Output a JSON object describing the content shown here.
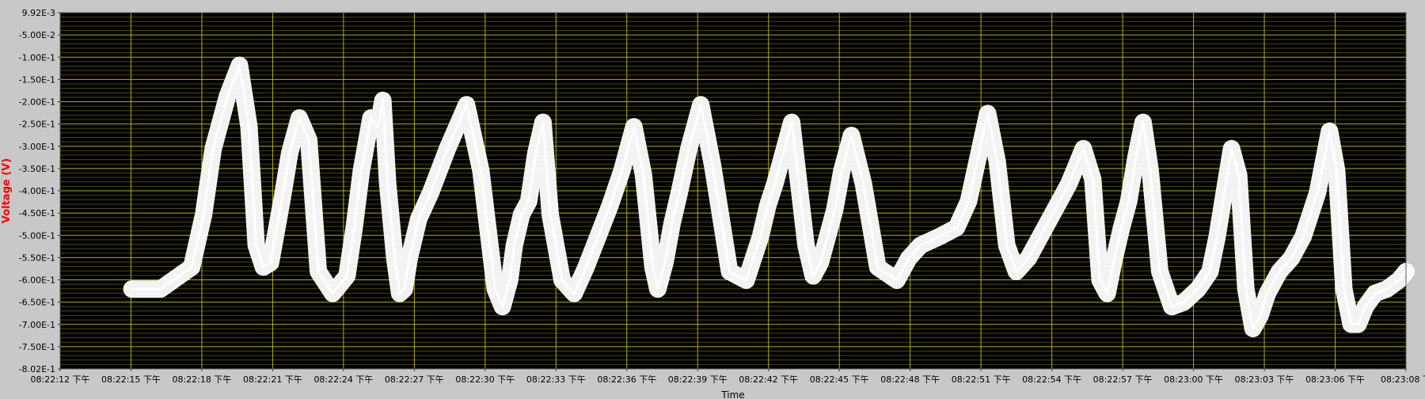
{
  "chart_data": {
    "type": "line",
    "title": "",
    "xlabel": "Time",
    "ylabel": "Voltage (V)",
    "x_tick_labels": [
      "08:22:12 下午",
      "08:22:15 下午",
      "08:22:18 下午",
      "08:22:21 下午",
      "08:22:24 下午",
      "08:22:27 下午",
      "08:22:30 下午",
      "08:22:33 下午",
      "08:22:36 下午",
      "08:22:39 下午",
      "08:22:42 下午",
      "08:22:45 下午",
      "08:22:48 下午",
      "08:22:51 下午",
      "08:22:54 下午",
      "08:22:57 下午",
      "08:23:00 下午",
      "08:23:03 下午",
      "08:23:06 下午",
      "08:23:08 下"
    ],
    "y_tick_labels": [
      "9.92E-3",
      "-5.00E-2",
      "-1.00E-1",
      "-1.50E-1",
      "-2.00E-1",
      "-2.50E-1",
      "-3.00E-1",
      "-3.50E-1",
      "-4.00E-1",
      "-4.50E-1",
      "-5.00E-1",
      "-5.50E-1",
      "-6.00E-1",
      "-6.50E-1",
      "-7.00E-1",
      "-7.50E-1",
      "-8.02E-1"
    ],
    "ylim": [
      -0.802,
      0.00992
    ],
    "xlim_seconds": [
      0,
      56.3
    ],
    "grid": true,
    "colors": {
      "plot_background": "#000000",
      "major_grid": "#b5b000",
      "minor_grid": "#4a4a00",
      "trace": "#ffffff",
      "ylabel": "#ff0000"
    },
    "series": [
      {
        "name": "",
        "x": [
          3.0,
          4.2,
          5.5,
          6.0,
          6.4,
          7.0,
          7.5,
          7.9,
          8.2,
          8.5,
          8.8,
          9.0,
          9.3,
          9.6,
          10.0,
          10.4,
          10.8,
          11.4,
          12.0,
          12.3,
          12.6,
          13.0,
          13.3,
          13.5,
          13.7,
          14.0,
          14.2,
          14.4,
          14.6,
          15.0,
          15.5,
          16.2,
          17.0,
          17.6,
          18.2,
          18.5,
          18.8,
          19.0,
          19.3,
          19.6,
          19.9,
          20.2,
          20.5,
          21.0,
          21.5,
          22.0,
          22.5,
          23.0,
          23.5,
          24.0,
          24.4,
          24.8,
          25.0,
          25.3,
          25.6,
          25.9,
          26.3,
          26.8,
          27.3,
          28.0,
          28.7,
          29.3,
          29.6,
          29.9,
          30.2,
          30.6,
          30.9,
          31.2,
          31.5,
          31.8,
          32.1,
          32.4,
          32.7,
          33.1,
          33.6,
          34.2,
          35.0,
          35.5,
          36.0,
          36.8,
          37.5,
          38.0,
          38.4,
          38.8,
          39.2,
          39.6,
          40.0,
          40.5,
          41.0,
          41.6,
          42.2,
          42.8,
          43.2,
          43.5,
          43.8,
          44.1,
          44.4,
          44.7,
          45.0,
          45.3,
          45.6,
          46.0,
          46.5,
          47.0,
          47.6,
          48.1,
          48.4,
          48.7,
          49.0,
          49.3,
          49.6,
          49.9,
          50.2,
          50.5,
          51.0,
          51.5,
          52.0,
          52.6,
          53.1,
          53.4,
          53.7,
          54.0,
          54.3,
          54.6,
          55.0,
          55.5,
          56.0,
          56.3
        ],
        "y": [
          -0.62,
          -0.62,
          -0.57,
          -0.45,
          -0.3,
          -0.18,
          -0.11,
          -0.25,
          -0.52,
          -0.57,
          -0.56,
          -0.5,
          -0.41,
          -0.31,
          -0.23,
          -0.28,
          -0.58,
          -0.63,
          -0.59,
          -0.48,
          -0.35,
          -0.23,
          -0.25,
          -0.19,
          -0.38,
          -0.55,
          -0.63,
          -0.62,
          -0.55,
          -0.46,
          -0.4,
          -0.3,
          -0.2,
          -0.35,
          -0.62,
          -0.66,
          -0.6,
          -0.52,
          -0.45,
          -0.42,
          -0.31,
          -0.24,
          -0.45,
          -0.6,
          -0.63,
          -0.57,
          -0.5,
          -0.43,
          -0.35,
          -0.25,
          -0.36,
          -0.57,
          -0.62,
          -0.56,
          -0.47,
          -0.4,
          -0.3,
          -0.2,
          -0.34,
          -0.58,
          -0.6,
          -0.5,
          -0.43,
          -0.38,
          -0.32,
          -0.24,
          -0.38,
          -0.52,
          -0.59,
          -0.56,
          -0.5,
          -0.44,
          -0.35,
          -0.27,
          -0.38,
          -0.57,
          -0.6,
          -0.55,
          -0.52,
          -0.5,
          -0.48,
          -0.42,
          -0.32,
          -0.22,
          -0.33,
          -0.52,
          -0.58,
          -0.55,
          -0.5,
          -0.44,
          -0.38,
          -0.3,
          -0.37,
          -0.6,
          -0.63,
          -0.55,
          -0.48,
          -0.42,
          -0.32,
          -0.24,
          -0.35,
          -0.58,
          -0.66,
          -0.65,
          -0.62,
          -0.58,
          -0.5,
          -0.4,
          -0.3,
          -0.36,
          -0.62,
          -0.71,
          -0.68,
          -0.63,
          -0.58,
          -0.55,
          -0.5,
          -0.4,
          -0.26,
          -0.35,
          -0.62,
          -0.7,
          -0.7,
          -0.66,
          -0.63,
          -0.62,
          -0.6,
          -0.58
        ]
      }
    ]
  }
}
